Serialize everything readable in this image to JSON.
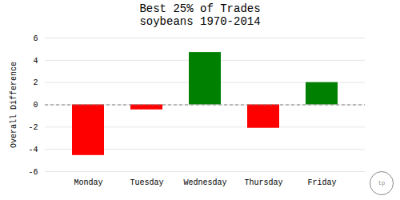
{
  "chart_data": {
    "type": "bar",
    "title": "Best 25% of Trades",
    "subtitle": "soybeans 1970-2014",
    "categories": [
      "Monday",
      "Tuesday",
      "Wednesday",
      "Thursday",
      "Friday"
    ],
    "values": [
      -4.55,
      -0.45,
      4.7,
      -2.1,
      2.0
    ],
    "colors": [
      "#ff0000",
      "#ff0000",
      "#008000",
      "#ff0000",
      "#008000"
    ],
    "ylabel": "Overall Difference",
    "ylim": [
      -6,
      6
    ],
    "yticks": [
      -6,
      -4,
      -2,
      0,
      2,
      4,
      6
    ],
    "grid": true,
    "annotation": "tp"
  }
}
